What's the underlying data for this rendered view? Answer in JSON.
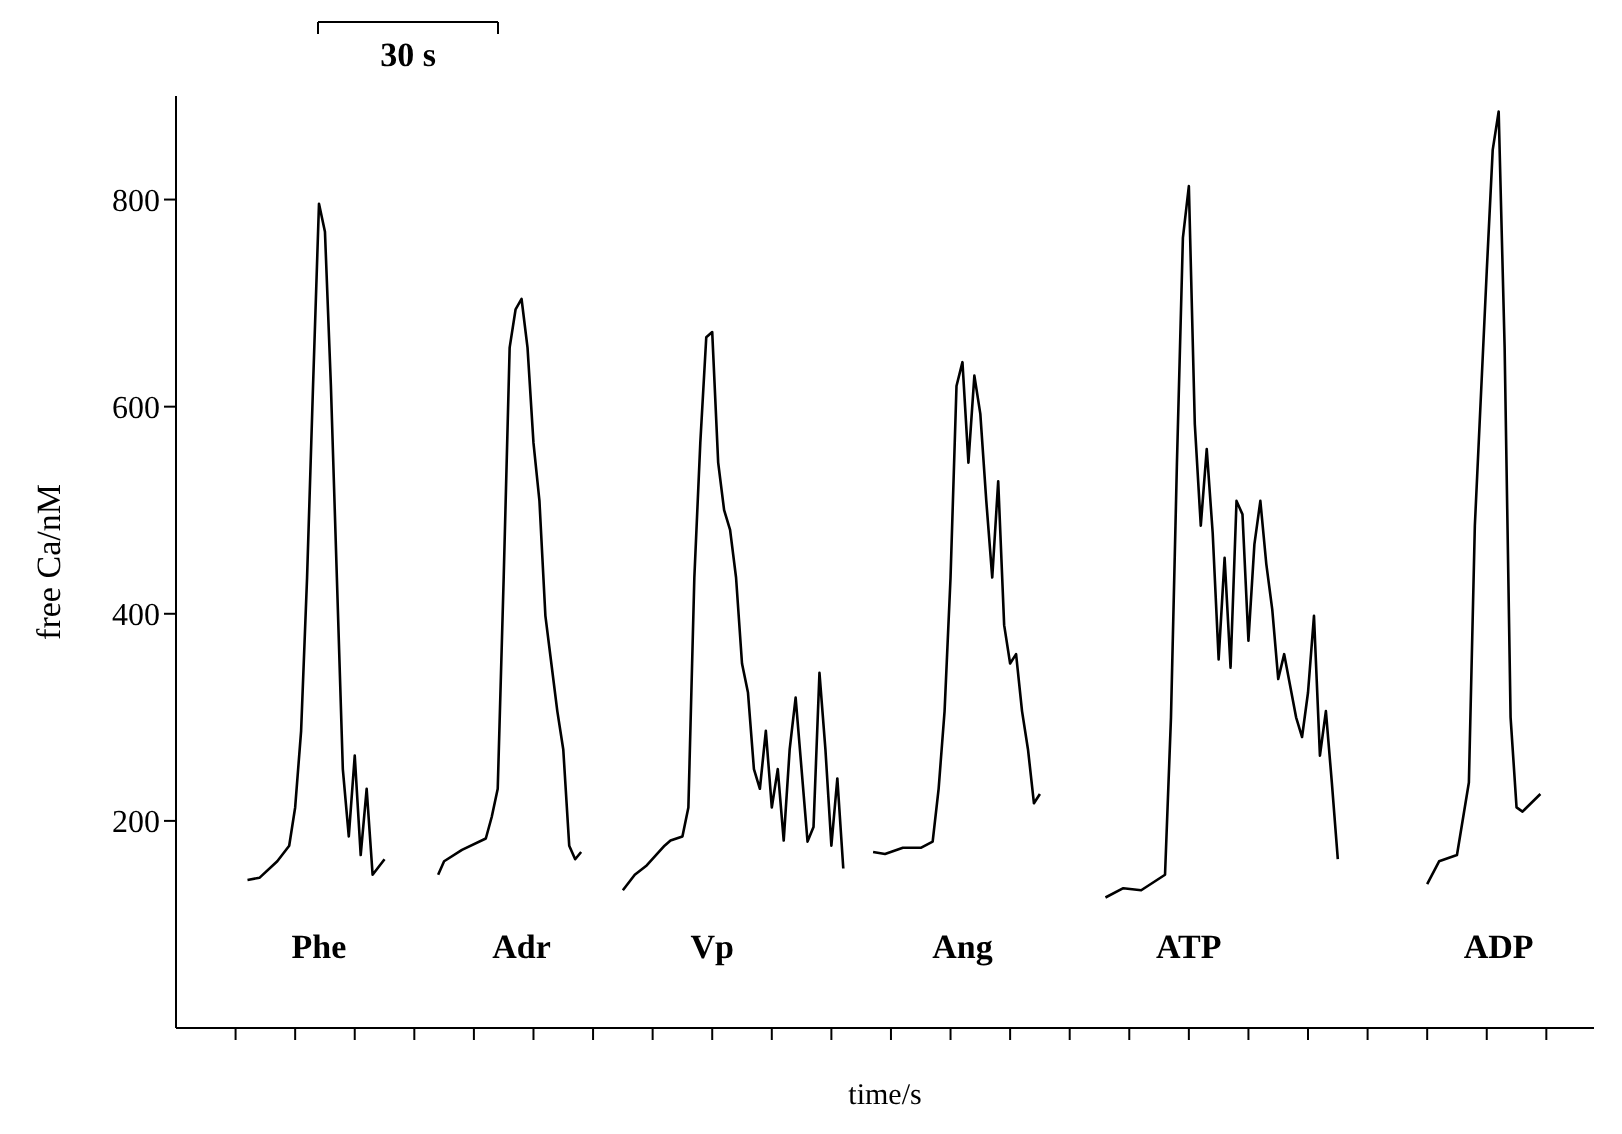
{
  "chart_data": {
    "type": "line",
    "xlabel": "time/s",
    "ylabel": "free Ca/nM",
    "annotations": [
      "30 s"
    ],
    "categories": [
      null,
      null,
      null,
      null,
      null,
      null,
      null,
      null,
      null,
      null,
      null,
      null,
      null,
      null,
      null,
      null,
      null,
      null,
      null,
      null,
      null,
      null,
      null,
      null,
      null,
      null,
      null,
      null,
      null,
      null,
      null,
      null,
      null,
      null,
      null,
      null,
      null,
      null,
      null,
      null,
      null,
      null,
      null,
      null,
      null,
      null,
      null,
      null,
      null,
      null,
      null,
      null,
      null,
      null,
      null,
      null,
      null,
      null,
      null,
      null,
      null,
      null,
      null,
      null,
      null,
      null,
      null,
      null,
      null,
      null,
      null,
      null,
      null,
      null,
      null,
      null,
      null,
      null,
      null,
      null,
      null,
      null,
      null,
      null,
      null,
      null,
      null,
      null,
      null,
      null,
      null,
      null,
      null,
      null,
      null,
      null,
      null,
      null,
      null,
      null,
      null,
      null,
      null,
      null,
      null,
      null,
      null,
      null,
      null,
      null,
      null,
      null,
      null,
      null,
      null,
      null,
      null,
      null,
      null,
      null,
      null,
      null,
      null,
      null,
      null,
      null,
      null,
      null,
      null,
      null,
      null,
      null,
      null,
      null,
      null,
      null,
      null,
      null,
      null,
      null,
      null,
      null,
      null,
      null,
      null,
      null,
      null,
      null,
      null,
      null,
      null,
      null,
      null,
      null,
      null,
      null,
      null,
      null,
      null,
      null,
      null,
      null,
      null,
      null,
      null,
      null,
      null,
      null,
      null,
      null,
      null,
      null,
      null,
      null,
      null,
      null,
      null,
      null,
      null,
      null,
      null,
      null,
      null,
      null,
      null,
      null,
      null,
      null,
      null,
      null,
      null,
      null,
      null,
      null,
      null,
      null,
      null,
      null,
      null,
      null,
      null,
      null,
      null,
      null,
      null,
      null,
      null,
      null,
      null,
      null,
      null,
      null,
      null,
      null,
      null,
      null,
      null,
      null,
      null,
      null,
      null,
      null,
      null,
      null,
      null,
      null,
      null,
      null,
      null,
      null,
      null,
      null,
      null,
      null,
      null,
      null,
      null,
      null,
      null
    ],
    "ylim": [
      0,
      900
    ],
    "yticks": [
      200,
      400,
      600,
      800
    ],
    "grid": false,
    "legend": false,
    "marker": "none",
    "line_style": "solid",
    "series": [
      {
        "name": "Phe",
        "color": "#000000",
        "values": [
          null,
          null,
          null,
          null,
          null,
          null,
          null,
          null,
          null,
          null,
          null,
          null,
          143,
          null,
          145,
          null,
          null,
          161,
          null,
          176,
          213,
          287,
          435,
          620,
          796,
          769,
          620,
          435,
          250,
          185,
          263,
          167,
          231,
          148,
          null,
          163,
          null,
          null,
          null,
          null,
          null,
          null,
          null,
          null,
          null,
          null,
          null,
          null,
          null,
          null,
          null,
          null,
          null,
          null,
          null,
          null,
          null,
          null,
          null,
          null,
          null,
          null,
          null,
          null,
          null,
          null,
          null,
          null,
          null,
          null,
          null,
          null,
          null,
          null,
          null,
          null,
          null,
          null,
          null,
          null,
          null,
          null,
          null,
          null,
          null,
          null,
          null,
          null,
          null,
          null,
          null,
          null,
          null,
          null,
          null,
          null,
          null,
          null,
          null,
          null,
          null,
          null,
          null,
          null,
          null,
          null,
          null,
          null,
          null,
          null,
          null,
          null,
          null,
          null,
          null,
          null,
          null,
          null,
          null,
          null,
          null,
          null,
          null,
          null,
          null,
          null,
          null,
          null,
          null,
          null,
          null,
          null,
          null,
          null,
          null,
          null,
          null,
          null,
          null,
          null,
          null,
          null,
          null,
          null,
          null,
          null,
          null,
          null,
          null,
          null,
          null,
          null,
          null,
          null,
          null,
          null,
          null,
          null,
          null,
          null,
          null,
          null,
          null,
          null,
          null,
          null,
          null,
          null,
          null,
          null,
          null,
          null,
          null,
          null,
          null,
          null,
          null,
          null,
          null,
          null,
          null,
          null,
          null,
          null,
          null,
          null,
          null,
          null,
          null,
          null,
          null,
          null,
          null,
          null,
          null,
          null,
          null,
          null,
          null,
          null,
          null,
          null,
          null,
          null,
          null,
          null,
          null,
          null,
          null,
          null,
          null,
          null,
          null,
          null,
          null,
          null,
          null,
          null,
          null,
          null,
          null,
          null,
          null,
          null,
          null,
          null,
          null,
          null,
          null,
          null,
          null,
          null,
          null,
          null,
          null,
          null,
          null,
          null,
          null
        ]
      },
      {
        "name": "Adr",
        "color": "#000000",
        "values": [
          null,
          null,
          null,
          null,
          null,
          null,
          null,
          null,
          null,
          null,
          null,
          null,
          null,
          null,
          null,
          null,
          null,
          null,
          null,
          null,
          null,
          null,
          null,
          null,
          null,
          null,
          null,
          null,
          null,
          null,
          null,
          null,
          null,
          null,
          null,
          null,
          null,
          null,
          null,
          null,
          null,
          null,
          null,
          null,
          148,
          161,
          null,
          null,
          172,
          null,
          null,
          null,
          183,
          204,
          231,
          435,
          657,
          694,
          704,
          657,
          565,
          509,
          398,
          352,
          306,
          269,
          176,
          163,
          170,
          null,
          null,
          null,
          null,
          null,
          null,
          null,
          null,
          null,
          null,
          null,
          null,
          null,
          null,
          null,
          null,
          null,
          null,
          null,
          null,
          null,
          null,
          null,
          null,
          null,
          null,
          null,
          null,
          null,
          null,
          null,
          null,
          null,
          null,
          null,
          null,
          null,
          null,
          null,
          null,
          null,
          null,
          null,
          null,
          null,
          null,
          null,
          null,
          null,
          null,
          null,
          null,
          null,
          null,
          null,
          null,
          null,
          null,
          null,
          null,
          null,
          null,
          null,
          null,
          null,
          null,
          null,
          null,
          null,
          null,
          null,
          null,
          null,
          null,
          null,
          null,
          null,
          null,
          null,
          null,
          null,
          null,
          null,
          null,
          null,
          null,
          null,
          null,
          null,
          null,
          null,
          null,
          null,
          null,
          null,
          null,
          null,
          null,
          null,
          null,
          null,
          null,
          null,
          null,
          null,
          null,
          null,
          null,
          null,
          null,
          null,
          null,
          null,
          null,
          null,
          null,
          null,
          null,
          null,
          null,
          null,
          null,
          null,
          null,
          null,
          null,
          null,
          null,
          null,
          null,
          null,
          null,
          null,
          null,
          null,
          null,
          null,
          null,
          null,
          null,
          null,
          null,
          null,
          null,
          null,
          null,
          null,
          null,
          null,
          null,
          null,
          null,
          null,
          null,
          null,
          null,
          null,
          null,
          null,
          null,
          null,
          null,
          null,
          null,
          null,
          null,
          null,
          null,
          null,
          null
        ]
      },
      {
        "name": "Vp",
        "color": "#000000",
        "values": [
          null,
          null,
          null,
          null,
          null,
          null,
          null,
          null,
          null,
          null,
          null,
          null,
          null,
          null,
          null,
          null,
          null,
          null,
          null,
          null,
          null,
          null,
          null,
          null,
          null,
          null,
          null,
          null,
          null,
          null,
          null,
          null,
          null,
          null,
          null,
          null,
          null,
          null,
          null,
          null,
          null,
          null,
          null,
          null,
          null,
          null,
          null,
          null,
          null,
          null,
          null,
          null,
          null,
          null,
          null,
          null,
          null,
          null,
          null,
          null,
          null,
          null,
          null,
          null,
          null,
          null,
          null,
          null,
          null,
          null,
          null,
          null,
          null,
          null,
          null,
          133,
          null,
          148,
          null,
          157,
          null,
          null,
          176,
          181,
          null,
          185,
          213,
          435,
          565,
          667,
          672,
          546,
          500,
          481,
          435,
          352,
          324,
          250,
          231,
          287,
          213,
          250,
          181,
          269,
          319,
          null,
          180,
          194,
          343,
          269,
          176,
          241,
          154,
          null,
          null,
          null,
          null,
          null,
          null,
          null,
          null,
          null,
          null,
          null,
          null,
          null,
          null,
          null,
          null,
          null,
          null,
          null,
          null,
          null,
          null,
          null,
          null,
          null,
          null,
          null,
          null,
          null,
          null,
          null,
          null,
          null,
          null,
          null,
          null,
          null,
          null,
          null,
          null,
          null,
          null,
          null,
          null,
          null,
          null,
          null,
          null,
          null,
          null,
          null,
          null,
          null,
          null,
          null,
          null,
          null,
          null,
          null,
          null,
          null,
          null,
          null,
          null,
          null,
          null,
          null,
          null,
          null,
          null,
          null,
          null,
          null,
          null,
          null,
          null,
          null,
          null,
          null,
          null,
          null,
          null,
          null,
          null,
          null,
          null,
          null,
          null,
          null,
          null,
          null,
          null,
          null,
          null,
          null,
          null,
          null,
          null,
          null,
          null,
          null,
          null,
          null,
          null,
          null,
          null,
          null,
          null,
          null,
          null,
          null,
          null,
          null,
          null,
          null,
          null,
          null,
          null,
          null,
          null,
          null,
          null,
          null,
          null,
          null,
          null
        ]
      },
      {
        "name": "Ang",
        "color": "#000000",
        "values": [
          null,
          null,
          null,
          null,
          null,
          null,
          null,
          null,
          null,
          null,
          null,
          null,
          null,
          null,
          null,
          null,
          null,
          null,
          null,
          null,
          null,
          null,
          null,
          null,
          null,
          null,
          null,
          null,
          null,
          null,
          null,
          null,
          null,
          null,
          null,
          null,
          null,
          null,
          null,
          null,
          null,
          null,
          null,
          null,
          null,
          null,
          null,
          null,
          null,
          null,
          null,
          null,
          null,
          null,
          null,
          null,
          null,
          null,
          null,
          null,
          null,
          null,
          null,
          null,
          null,
          null,
          null,
          null,
          null,
          null,
          null,
          null,
          null,
          null,
          null,
          null,
          null,
          null,
          null,
          null,
          null,
          null,
          null,
          null,
          null,
          null,
          null,
          null,
          null,
          null,
          null,
          null,
          null,
          null,
          null,
          null,
          null,
          null,
          null,
          null,
          null,
          null,
          null,
          null,
          null,
          null,
          null,
          null,
          null,
          null,
          null,
          null,
          null,
          null,
          null,
          null,
          null,
          170,
          null,
          168,
          null,
          null,
          174,
          null,
          null,
          174,
          null,
          180,
          231,
          306,
          435,
          620,
          643,
          546,
          630,
          593,
          509,
          435,
          528,
          389,
          352,
          361,
          306,
          269,
          217,
          226,
          null,
          null,
          null,
          null,
          null,
          null,
          null,
          null,
          null,
          null,
          null,
          null,
          null,
          null,
          null,
          null,
          null,
          null,
          null,
          null,
          null,
          null,
          null,
          null,
          null,
          null,
          null,
          null,
          null,
          null,
          null,
          null,
          null,
          null,
          null,
          null,
          null,
          null,
          null,
          null,
          null,
          null,
          null,
          null,
          null,
          null,
          null,
          null,
          null,
          null,
          null,
          null,
          null,
          null,
          null,
          null,
          null,
          null,
          null,
          null,
          null,
          null,
          null,
          null,
          null,
          null,
          null,
          null,
          null,
          null,
          null,
          null,
          null,
          null,
          null,
          null,
          null,
          null,
          null,
          null,
          null,
          null,
          null,
          null,
          null,
          null,
          null,
          null,
          null,
          null,
          null,
          null,
          null
        ]
      },
      {
        "name": "ATP",
        "color": "#000000",
        "values": [
          null,
          null,
          null,
          null,
          null,
          null,
          null,
          null,
          null,
          null,
          null,
          null,
          null,
          null,
          null,
          null,
          null,
          null,
          null,
          null,
          null,
          null,
          null,
          null,
          null,
          null,
          null,
          null,
          null,
          null,
          null,
          null,
          null,
          null,
          null,
          null,
          null,
          null,
          null,
          null,
          null,
          null,
          null,
          null,
          null,
          null,
          null,
          null,
          null,
          null,
          null,
          null,
          null,
          null,
          null,
          null,
          null,
          null,
          null,
          null,
          null,
          null,
          null,
          null,
          null,
          null,
          null,
          null,
          null,
          null,
          null,
          null,
          null,
          null,
          null,
          null,
          null,
          null,
          null,
          null,
          null,
          null,
          null,
          null,
          null,
          null,
          null,
          null,
          null,
          null,
          null,
          null,
          null,
          null,
          null,
          null,
          null,
          null,
          null,
          null,
          null,
          null,
          null,
          null,
          null,
          null,
          null,
          null,
          null,
          null,
          null,
          null,
          null,
          null,
          null,
          null,
          null,
          null,
          null,
          null,
          null,
          null,
          null,
          null,
          null,
          null,
          null,
          null,
          null,
          null,
          null,
          null,
          null,
          null,
          null,
          null,
          null,
          null,
          null,
          null,
          null,
          null,
          null,
          null,
          null,
          null,
          null,
          null,
          null,
          null,
          null,
          null,
          null,
          null,
          null,
          null,
          126,
          null,
          null,
          135,
          null,
          null,
          133,
          null,
          null,
          null,
          148,
          300,
          546,
          763,
          813,
          583,
          485,
          559,
          478,
          356,
          454,
          348,
          509,
          496,
          374,
          467,
          509,
          448,
          404,
          337,
          361,
          null,
          300,
          281,
          324,
          398,
          263,
          306,
          237,
          163,
          null,
          null,
          null,
          null,
          null,
          null,
          null,
          null,
          null,
          null,
          null,
          null,
          null,
          null,
          null,
          null,
          null,
          null,
          null,
          null,
          null,
          null,
          null,
          null,
          null,
          null,
          null,
          null,
          null,
          null,
          null,
          null,
          null,
          null,
          null,
          null,
          null,
          null,
          null,
          null,
          null,
          null,
          null
        ]
      },
      {
        "name": "ADP",
        "color": "#000000",
        "values": [
          null,
          null,
          null,
          null,
          null,
          null,
          null,
          null,
          null,
          null,
          null,
          null,
          null,
          null,
          null,
          null,
          null,
          null,
          null,
          null,
          null,
          null,
          null,
          null,
          null,
          null,
          null,
          null,
          null,
          null,
          null,
          null,
          null,
          null,
          null,
          null,
          null,
          null,
          null,
          null,
          null,
          null,
          null,
          null,
          null,
          null,
          null,
          null,
          null,
          null,
          null,
          null,
          null,
          null,
          null,
          null,
          null,
          null,
          null,
          null,
          null,
          null,
          null,
          null,
          null,
          null,
          null,
          null,
          null,
          null,
          null,
          null,
          null,
          null,
          null,
          null,
          null,
          null,
          null,
          null,
          null,
          null,
          null,
          null,
          null,
          null,
          null,
          null,
          null,
          null,
          null,
          null,
          null,
          null,
          null,
          null,
          null,
          null,
          null,
          null,
          null,
          null,
          null,
          null,
          null,
          null,
          null,
          null,
          null,
          null,
          null,
          null,
          null,
          null,
          null,
          null,
          null,
          null,
          null,
          null,
          null,
          null,
          null,
          null,
          null,
          null,
          null,
          null,
          null,
          null,
          null,
          null,
          null,
          null,
          null,
          null,
          null,
          null,
          null,
          null,
          null,
          null,
          null,
          null,
          null,
          null,
          null,
          null,
          null,
          null,
          null,
          null,
          null,
          null,
          null,
          null,
          null,
          null,
          null,
          null,
          null,
          null,
          null,
          null,
          null,
          null,
          null,
          null,
          null,
          null,
          null,
          null,
          null,
          null,
          null,
          null,
          null,
          null,
          null,
          null,
          null,
          null,
          null,
          null,
          null,
          null,
          null,
          null,
          null,
          null,
          null,
          null,
          null,
          null,
          null,
          null,
          null,
          null,
          null,
          null,
          null,
          null,
          null,
          null,
          null,
          null,
          null,
          null,
          null,
          null,
          139,
          null,
          161,
          null,
          null,
          167,
          null,
          237,
          485,
          null,
          731,
          848,
          885,
          657,
          300,
          213,
          209,
          null,
          null,
          226,
          null,
          null,
          null,
          null,
          null,
          null,
          null,
          null,
          null
        ]
      }
    ]
  }
}
